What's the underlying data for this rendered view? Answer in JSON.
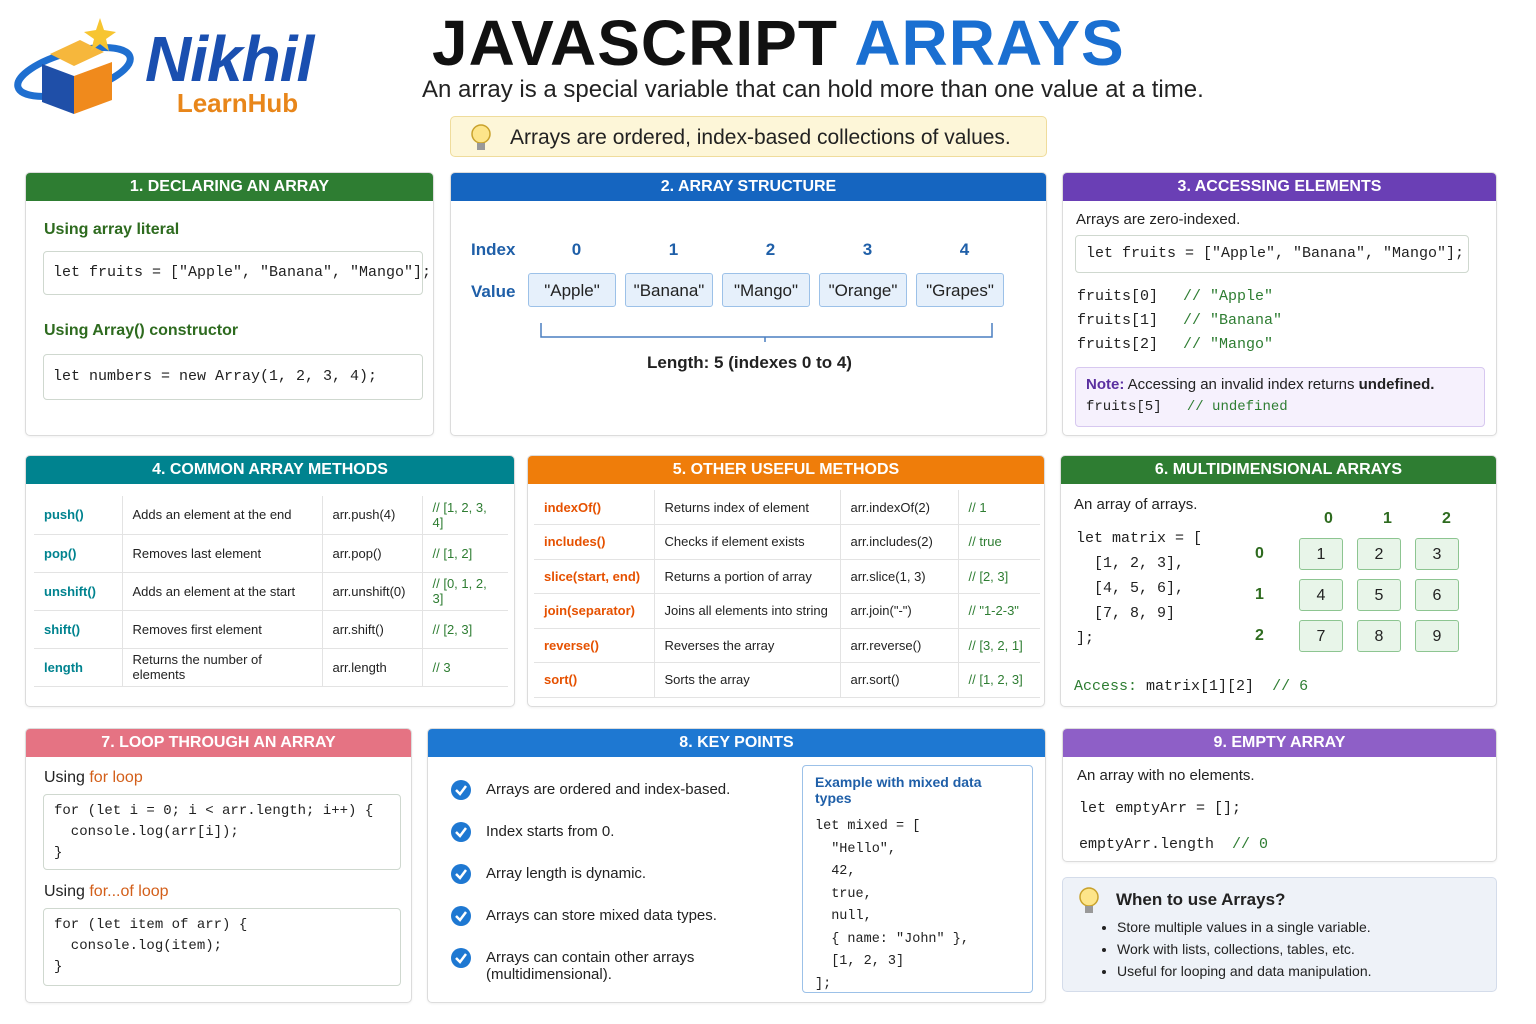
{
  "header": {
    "brand": "Nikhil",
    "brand_sub": "LearnHub",
    "title_main": "JAVASCRIPT",
    "title_accent": "ARRAYS",
    "subtitle": "An array is a special variable that can hold more than one value at a time.",
    "tip": "Arrays are ordered, index-based collections of values."
  },
  "declaring": {
    "title": "1. DECLARING AN ARRAY",
    "literal_label": "Using array literal",
    "literal_code": "let fruits = [\"Apple\", \"Banana\", \"Mango\"];",
    "constructor_label": "Using Array() constructor",
    "constructor_code": "let numbers = new Array(1, 2, 3, 4);"
  },
  "structure": {
    "title": "2. ARRAY STRUCTURE",
    "index_label": "Index",
    "value_label": "Value",
    "indexes": [
      0,
      1,
      2,
      3,
      4
    ],
    "values": [
      "\"Apple\"",
      "\"Banana\"",
      "\"Mango\"",
      "\"Orange\"",
      "\"Grapes\""
    ],
    "length_note": "Length: 5 (indexes 0 to 4)"
  },
  "accessing": {
    "title": "3. ACCESSING ELEMENTS",
    "intro": "Arrays are zero-indexed.",
    "code": "let fruits = [\"Apple\", \"Banana\", \"Mango\"];",
    "lines": [
      {
        "code": "fruits[0]",
        "comment": "// \"Apple\""
      },
      {
        "code": "fruits[1]",
        "comment": "// \"Banana\""
      },
      {
        "code": "fruits[2]",
        "comment": "// \"Mango\""
      }
    ],
    "note_label": "Note:",
    "note_text": "Accessing an invalid index returns",
    "note_value": "undefined.",
    "note_code": "fruits[5]",
    "note_comment": "// undefined"
  },
  "methods": {
    "title": "4. COMMON ARRAY METHODS",
    "rows": [
      [
        "push()",
        "Adds an element at the end",
        "arr.push(4)",
        "// [1, 2, 3, 4]"
      ],
      [
        "pop()",
        "Removes last element",
        "arr.pop()",
        "// [1, 2]"
      ],
      [
        "unshift()",
        "Adds an element at the start",
        "arr.unshift(0)",
        "// [0, 1, 2, 3]"
      ],
      [
        "shift()",
        "Removes first element",
        "arr.shift()",
        "// [2, 3]"
      ],
      [
        "length",
        "Returns the number of elements",
        "arr.length",
        "// 3"
      ]
    ]
  },
  "other_methods": {
    "title": "5. OTHER USEFUL METHODS",
    "rows": [
      [
        "indexOf()",
        "Returns index of element",
        "arr.indexOf(2)",
        "// 1"
      ],
      [
        "includes()",
        "Checks if element exists",
        "arr.includes(2)",
        "// true"
      ],
      [
        "slice(start, end)",
        "Returns a portion of array",
        "arr.slice(1, 3)",
        "// [2, 3]"
      ],
      [
        "join(separator)",
        "Joins all elements into string",
        "arr.join(\"-\")",
        "// \"1-2-3\""
      ],
      [
        "reverse()",
        "Reverses the array",
        "arr.reverse()",
        "// [3, 2, 1]"
      ],
      [
        "sort()",
        "Sorts the array",
        "arr.sort()",
        "// [1, 2, 3]"
      ]
    ]
  },
  "multidim": {
    "title": "6. MULTIDIMENSIONAL ARRAYS",
    "intro": "An array of arrays.",
    "code": [
      "let matrix = [",
      "  [1, 2, 3],",
      "  [4, 5, 6],",
      "  [7, 8, 9]",
      "];"
    ],
    "col_indexes": [
      0,
      1,
      2
    ],
    "row_indexes": [
      0,
      1,
      2
    ],
    "matrix": [
      [
        1,
        2,
        3
      ],
      [
        4,
        5,
        6
      ],
      [
        7,
        8,
        9
      ]
    ],
    "access_label": "Access:",
    "access_code": "matrix[1][2]",
    "access_comment": "// 6"
  },
  "loop": {
    "title": "7. LOOP THROUGH AN ARRAY",
    "for_label": "Using",
    "for_keyword": "for loop",
    "for_code": [
      "for (let i = 0; i < arr.length; i++) {",
      "  console.log(arr[i]);",
      "}"
    ],
    "forof_label": "Using",
    "forof_keyword": "for...of loop",
    "forof_code": [
      "for (let item of arr) {",
      "  console.log(item);",
      "}"
    ]
  },
  "key_points": {
    "title": "8. KEY POINTS",
    "points": [
      "Arrays are ordered and index-based.",
      "Index starts from 0.",
      "Array length is dynamic.",
      "Arrays can store mixed data types.",
      "Arrays can contain other arrays (multidimensional)."
    ],
    "example_title": "Example with mixed data types",
    "example_code": [
      "let mixed = [",
      "  \"Hello\",",
      "  42,",
      "  true,",
      "  null,",
      "  { name: \"John\" },",
      "  [1, 2, 3]",
      "];"
    ]
  },
  "empty": {
    "title": "9. EMPTY ARRAY",
    "intro": "An array with no elements.",
    "code_decl": "let emptyArr = [];",
    "code_length": "emptyArr.length",
    "comment": "// 0"
  },
  "when": {
    "title": "When to use Arrays?",
    "items": [
      "Store multiple values in a single variable.",
      "Work with lists, collections, tables, etc.",
      "Useful for looping and data manipulation."
    ]
  }
}
